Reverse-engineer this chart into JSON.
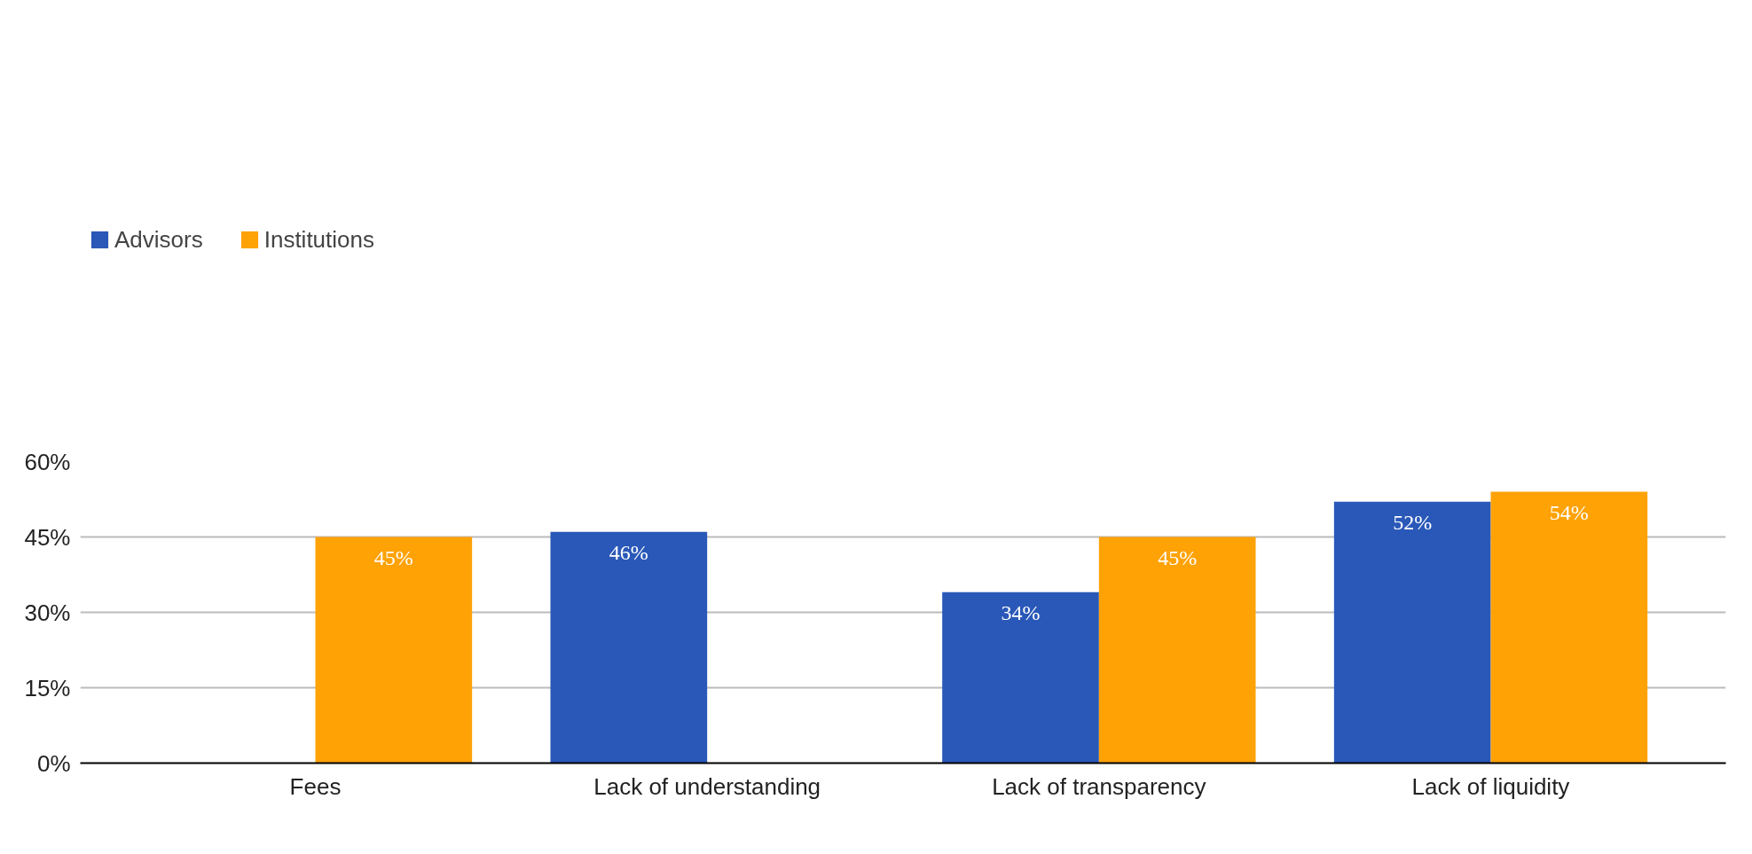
{
  "chart_data": {
    "type": "bar",
    "categories": [
      "Fees",
      "Lack of understanding",
      "Lack of transparency",
      "Lack of liquidity"
    ],
    "series": [
      {
        "name": "Advisors",
        "color": "#2a58b8",
        "values": [
          null,
          46,
          34,
          52
        ],
        "value_labels": [
          null,
          "46%",
          "34%",
          "52%"
        ]
      },
      {
        "name": "Institutions",
        "color": "#ffa206",
        "values": [
          45,
          null,
          45,
          54
        ],
        "value_labels": [
          "45%",
          null,
          "45%",
          "54%"
        ]
      }
    ],
    "ylim": [
      0,
      60
    ],
    "yticks": [
      {
        "value": 0,
        "label": "0%"
      },
      {
        "value": 15,
        "label": "15%"
      },
      {
        "value": 30,
        "label": "30%"
      },
      {
        "value": 45,
        "label": "45%"
      },
      {
        "value": 60,
        "label": "60%"
      }
    ],
    "grid": "y",
    "legend": "top left"
  }
}
